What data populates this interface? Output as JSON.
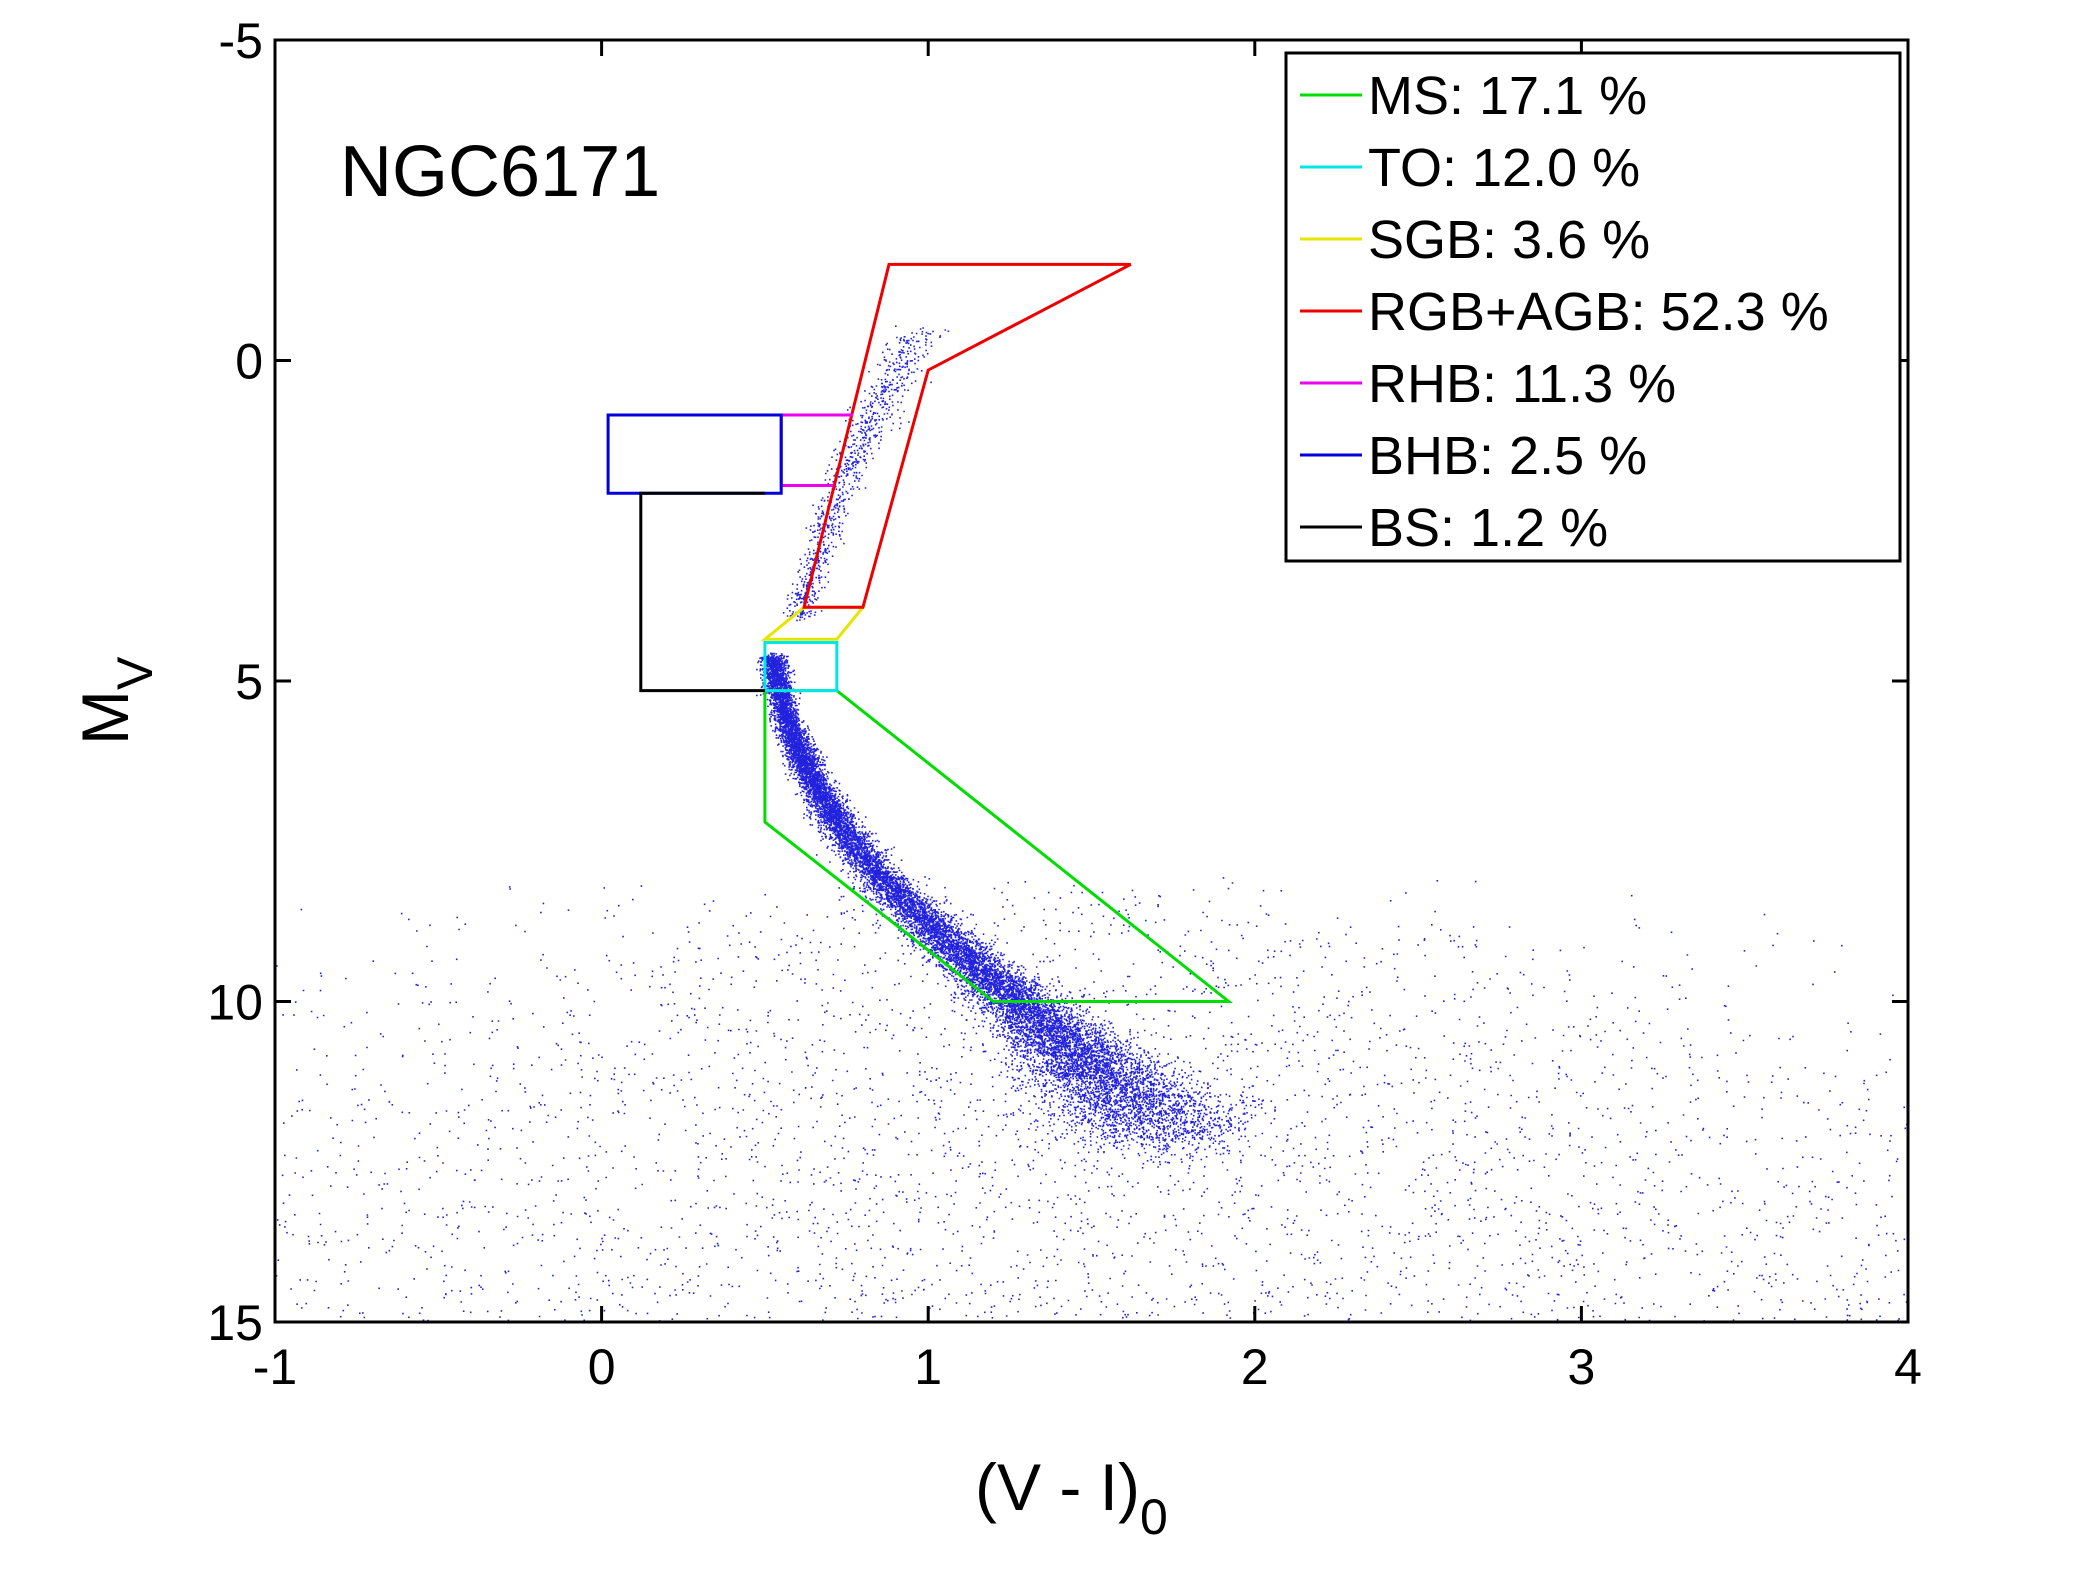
{
  "chart_data": {
    "type": "scatter",
    "annotation": "NGC6171",
    "xlabel": {
      "main": "(V - I)",
      "sub": "0"
    },
    "ylabel": {
      "main": "M",
      "sub": "V"
    },
    "xlim": [
      -1,
      4
    ],
    "ylim": [
      -5,
      15
    ],
    "y_inverted": true,
    "xticks": [
      -1,
      0,
      1,
      2,
      3,
      4
    ],
    "yticks": [
      -5,
      0,
      5,
      10,
      15
    ],
    "xtick_labels": [
      "-1",
      "0",
      "1",
      "2",
      "3",
      "4"
    ],
    "ytick_labels": [
      "-5",
      "0",
      "5",
      "10",
      "15"
    ],
    "grid": false,
    "legend_position": "top-right",
    "point_color": "#2222dd",
    "regions": [
      {
        "label": "MS: 17.1 %",
        "color": "#00dd00",
        "closed": true,
        "vertices": [
          [
            0.5,
            5.15
          ],
          [
            0.72,
            5.15
          ],
          [
            1.92,
            10.0
          ],
          [
            1.2,
            10.0
          ],
          [
            0.5,
            7.2
          ]
        ]
      },
      {
        "label": "TO: 12.0 %",
        "color": "#00e5e5",
        "closed": true,
        "vertices": [
          [
            0.5,
            4.4
          ],
          [
            0.72,
            4.4
          ],
          [
            0.72,
            5.15
          ],
          [
            0.5,
            5.15
          ]
        ]
      },
      {
        "label": "SGB: 3.6 %",
        "color": "#e5e500",
        "closed": true,
        "vertices": [
          [
            0.5,
            4.35
          ],
          [
            0.62,
            3.85
          ],
          [
            0.8,
            3.85
          ],
          [
            0.72,
            4.35
          ]
        ]
      },
      {
        "label": "RGB+AGB: 52.3 %",
        "color": "#ee0000",
        "closed": true,
        "vertices": [
          [
            0.62,
            3.85
          ],
          [
            0.88,
            -1.5
          ],
          [
            1.62,
            -1.5
          ],
          [
            1.0,
            0.15
          ],
          [
            0.8,
            3.85
          ]
        ]
      },
      {
        "label": "RHB: 11.3 %",
        "color": "#ee00ee",
        "closed": false,
        "vertices": [
          [
            0.77,
            0.85
          ],
          [
            0.55,
            0.85
          ],
          [
            0.55,
            1.95
          ],
          [
            0.71,
            1.95
          ]
        ]
      },
      {
        "label": "BHB: 2.5 %",
        "color": "#0000dd",
        "closed": true,
        "vertices": [
          [
            0.02,
            0.85
          ],
          [
            0.55,
            0.85
          ],
          [
            0.55,
            2.07
          ],
          [
            0.02,
            2.07
          ]
        ]
      },
      {
        "label": "BS: 1.2 %",
        "color": "#000000",
        "closed": false,
        "vertices": [
          [
            0.5,
            2.07
          ],
          [
            0.12,
            2.07
          ],
          [
            0.12,
            5.15
          ],
          [
            0.5,
            5.15
          ]
        ]
      }
    ],
    "point_density": [
      {
        "note": "main_sequence_ridge",
        "x": [
          0.52,
          0.56,
          0.62,
          0.72,
          0.86,
          1.02,
          1.18,
          1.32,
          1.45,
          1.58,
          1.75
        ],
        "y": [
          4.6,
          5.5,
          6.3,
          7.2,
          8.1,
          8.9,
          9.6,
          10.2,
          10.8,
          11.4,
          12.1
        ],
        "n": 14000,
        "sigma": [
          0.02,
          0.02,
          0.025,
          0.03,
          0.035,
          0.045,
          0.055,
          0.07,
          0.09,
          0.12,
          0.16
        ]
      },
      {
        "note": "red_giant_branch",
        "x": [
          0.6,
          0.66,
          0.75,
          0.85,
          0.98
        ],
        "y": [
          4.0,
          3.0,
          1.7,
          0.6,
          -0.5
        ],
        "n": 900,
        "sigma": [
          0.02,
          0.025,
          0.03,
          0.035,
          0.04
        ]
      },
      {
        "note": "field",
        "n": 4500
      }
    ]
  }
}
